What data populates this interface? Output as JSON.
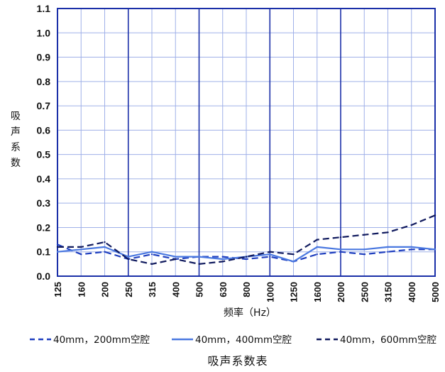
{
  "chart_data": {
    "type": "line",
    "title": "",
    "caption": "吸声系数表",
    "xlabel": "频率（Hz）",
    "ylabel": "吸声系数",
    "categories": [
      "125",
      "160",
      "200",
      "250",
      "315",
      "400",
      "500",
      "630",
      "800",
      "1000",
      "1250",
      "1600",
      "2000",
      "2500",
      "3150",
      "4000",
      "5000"
    ],
    "ylim": [
      0,
      1.1
    ],
    "yticks": [
      "0.0",
      "0.1",
      "0.2",
      "0.3",
      "0.4",
      "0.5",
      "0.6",
      "0.7",
      "0.8",
      "0.9",
      "1.0",
      "1.1"
    ],
    "grid": true,
    "legend_position": "bottom",
    "series": [
      {
        "name": "40mm，200mm空腔",
        "style": "dashed",
        "color": "#1f3fbf",
        "values": [
          0.13,
          0.09,
          0.1,
          0.07,
          0.09,
          0.07,
          0.08,
          0.08,
          0.07,
          0.08,
          0.06,
          0.09,
          0.1,
          0.09,
          0.1,
          0.11,
          0.11
        ]
      },
      {
        "name": "40mm，400mm空腔",
        "style": "solid",
        "color": "#4a78e0",
        "values": [
          0.1,
          0.11,
          0.12,
          0.08,
          0.1,
          0.08,
          0.08,
          0.07,
          0.08,
          0.09,
          0.06,
          0.12,
          0.11,
          0.11,
          0.12,
          0.12,
          0.11
        ]
      },
      {
        "name": "40mm，600mm空腔",
        "style": "dashed",
        "color": "#101a5e",
        "values": [
          0.12,
          0.12,
          0.14,
          0.07,
          0.05,
          0.07,
          0.05,
          0.06,
          0.08,
          0.1,
          0.09,
          0.15,
          0.16,
          0.17,
          0.18,
          0.21,
          0.25
        ]
      }
    ]
  },
  "colors": {
    "frame": "#1a2fa8",
    "grid": "#9fb0e8"
  }
}
